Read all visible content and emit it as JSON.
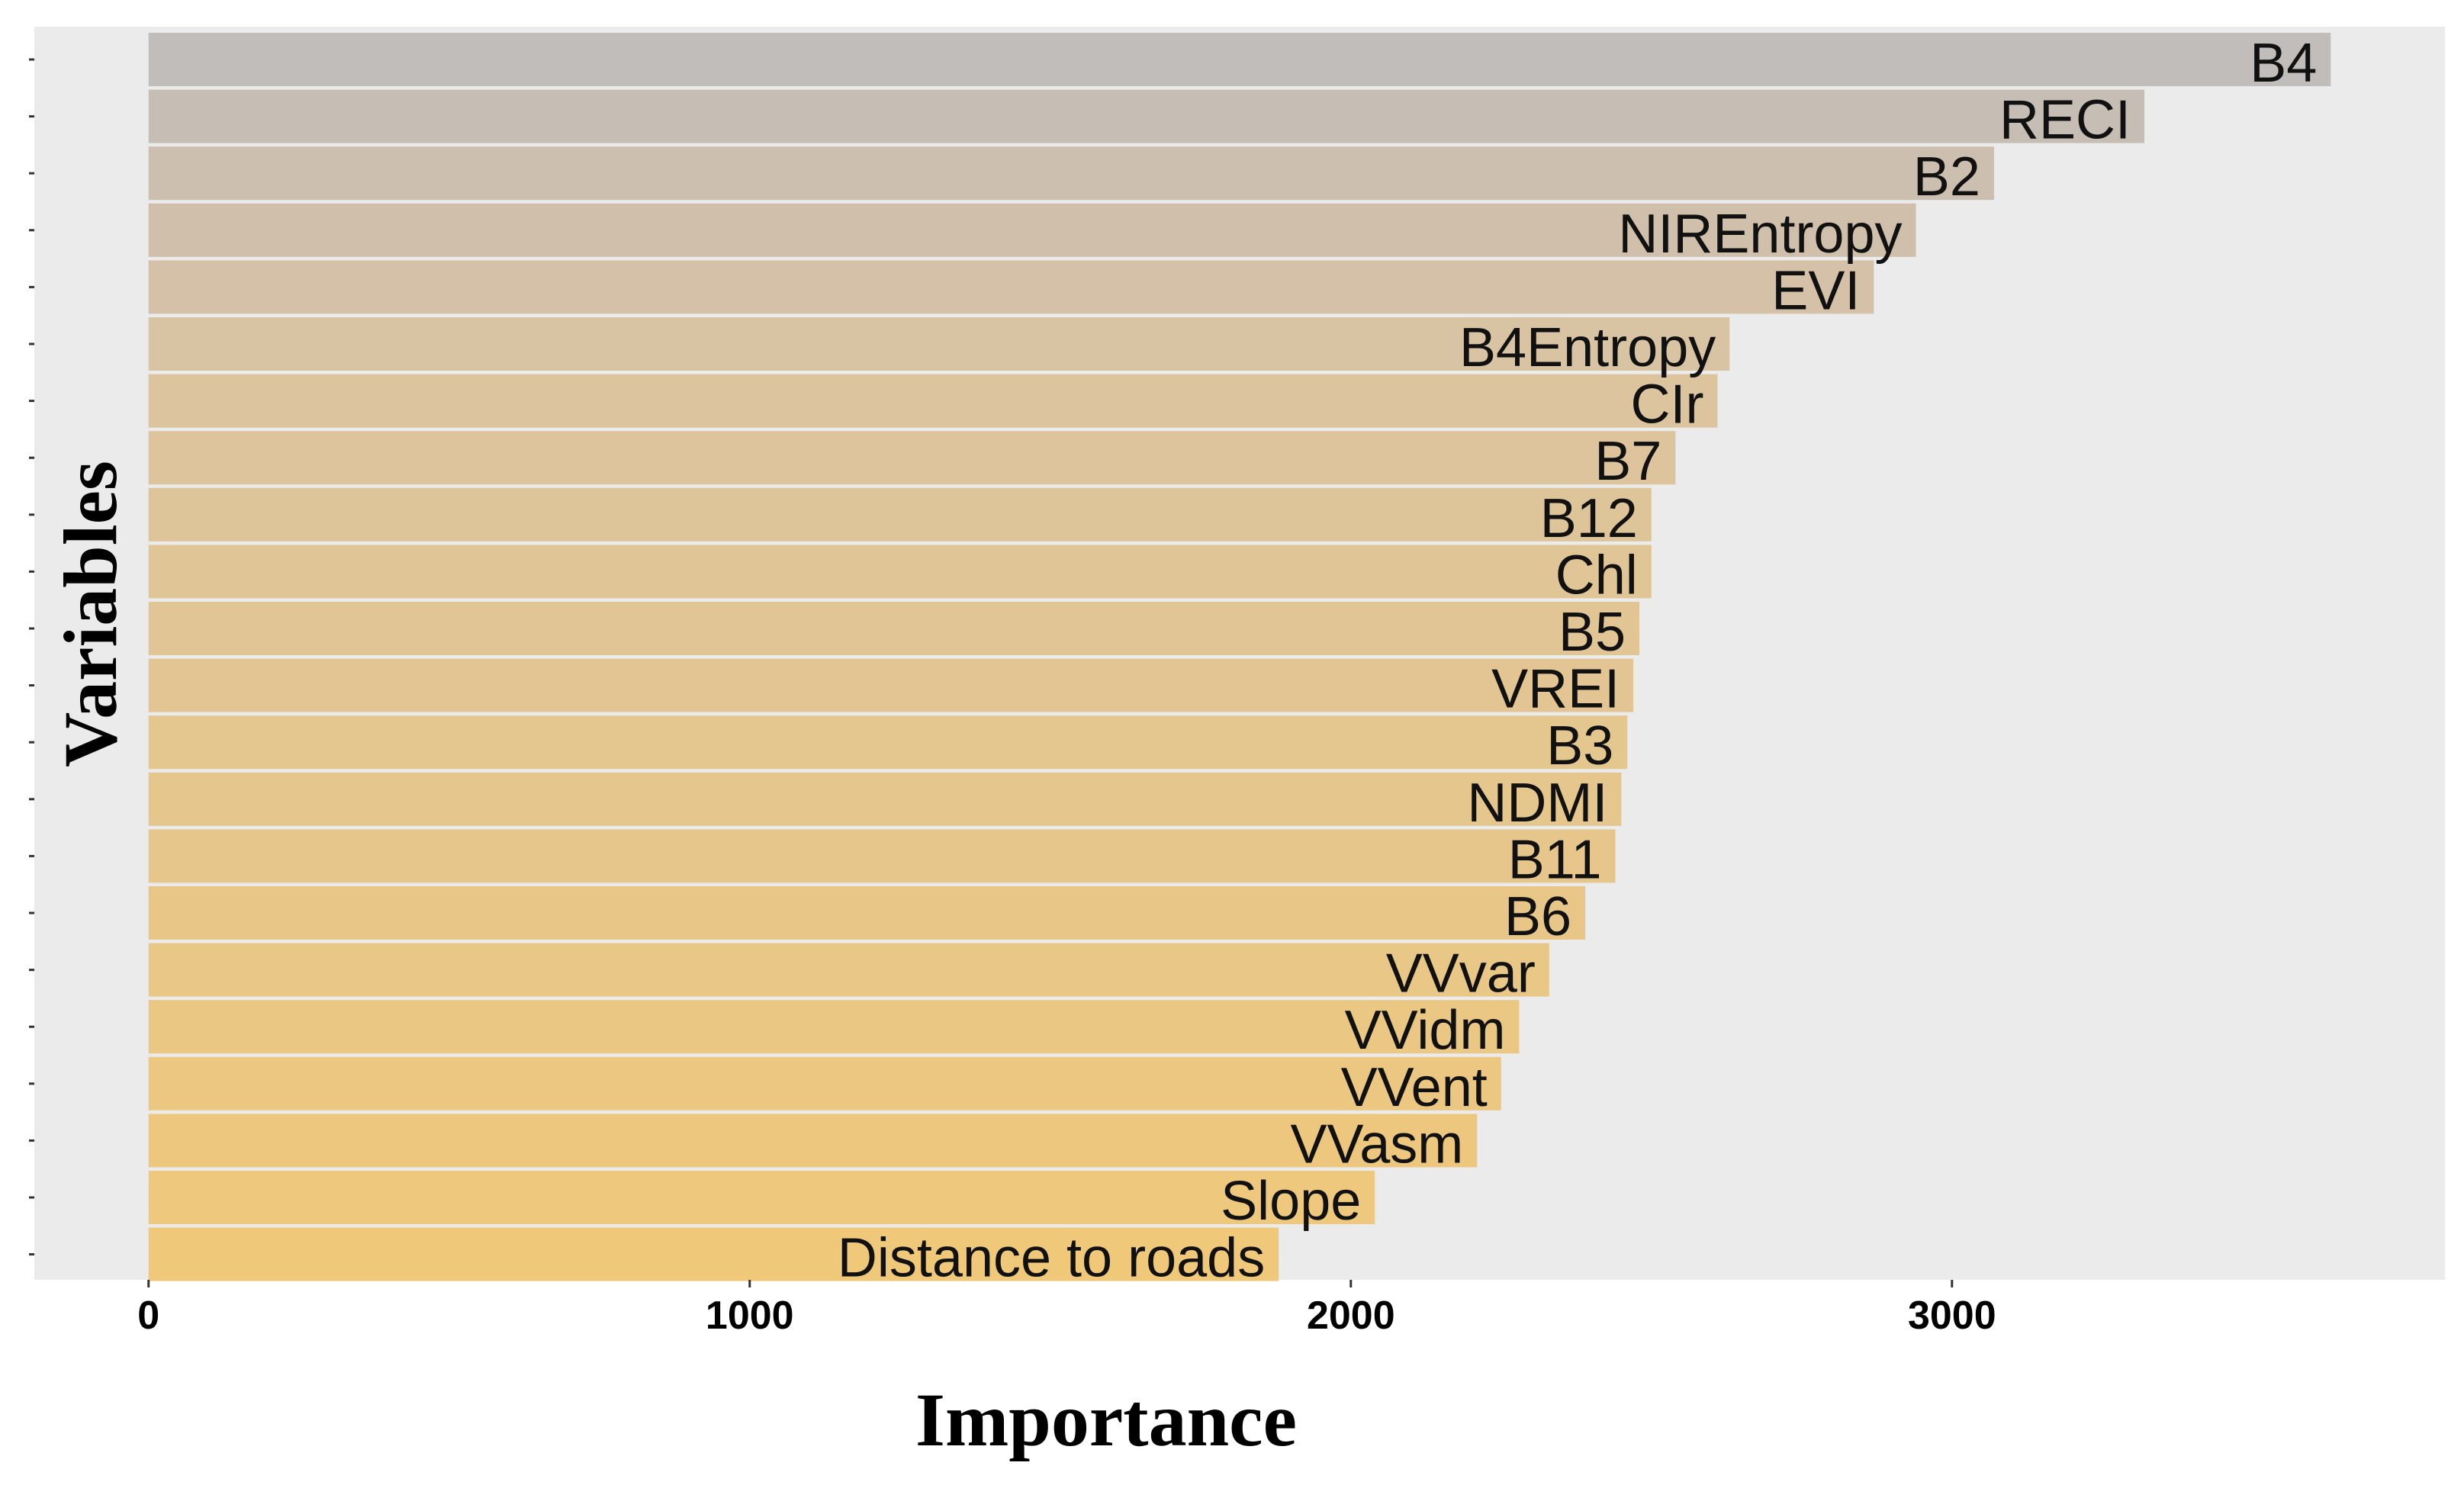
{
  "chart_data": {
    "type": "bar",
    "orientation": "horizontal",
    "title": "",
    "xlabel": "Importance",
    "ylabel": "Variables",
    "xlim": [
      -190,
      3820
    ],
    "xticks": [
      0,
      1000,
      2000,
      3000
    ],
    "grid": false,
    "legend": "none",
    "colors": {
      "panel_background": "#ebebeb",
      "bar_top": "#bdbdbd",
      "bar_bottom": "#f0c878",
      "bar_separator": "#ffffff",
      "axis_tick": "#333333"
    },
    "categories": [
      "B4",
      "RECI",
      "B2",
      "NIREntropy",
      "EVI",
      "B4Entropy",
      "CIr",
      "B7",
      "B12",
      "Chl",
      "B5",
      "VREI",
      "B3",
      "NDMI",
      "B11",
      "B6",
      "VVvar",
      "VVidm",
      "VVent",
      "VVasm",
      "Slope",
      "Distance to roads"
    ],
    "values": [
      3630,
      3320,
      3070,
      2940,
      2870,
      2630,
      2610,
      2540,
      2500,
      2500,
      2480,
      2470,
      2460,
      2450,
      2440,
      2390,
      2330,
      2280,
      2250,
      2210,
      2040,
      1880
    ]
  }
}
